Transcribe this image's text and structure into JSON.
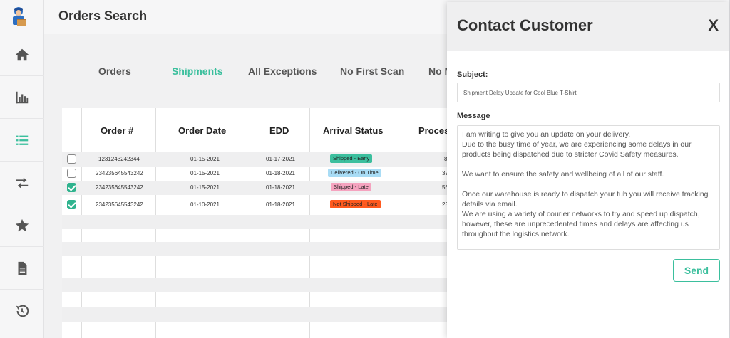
{
  "app": {
    "page_title": "Orders Search"
  },
  "sidebar": {
    "items": [
      {
        "name": "home",
        "icon": "home-icon"
      },
      {
        "name": "analytics",
        "icon": "bar-chart-icon"
      },
      {
        "name": "orders-list",
        "icon": "list-icon",
        "active": true
      },
      {
        "name": "transfers",
        "icon": "arrows-icon"
      },
      {
        "name": "favorites",
        "icon": "star-icon"
      },
      {
        "name": "documents",
        "icon": "document-icon"
      },
      {
        "name": "history",
        "icon": "history-icon"
      }
    ],
    "accent": "#3bbf9d"
  },
  "tabs": [
    {
      "label": "Orders",
      "active": false
    },
    {
      "label": "Shipments",
      "active": true
    },
    {
      "label": "All Exceptions",
      "active": false
    },
    {
      "label": "No First Scan",
      "active": false
    },
    {
      "label": "No M",
      "active": false
    }
  ],
  "table": {
    "headers": [
      "Order #",
      "Order Date",
      "EDD",
      "Arrival Status",
      "Proces"
    ],
    "rows": [
      {
        "checked": false,
        "order": "1231243242344",
        "order_date": "01-15-2021",
        "edd": "01-17-2021",
        "status": "Shipped - Early",
        "status_color": "#3cbf9e",
        "process": "8"
      },
      {
        "checked": false,
        "order": "234235645543242",
        "order_date": "01-15-2021",
        "edd": "01-18-2021",
        "status": "Delivered - On Time",
        "status_color": "#a9dcf5",
        "process": "37"
      },
      {
        "checked": true,
        "order": "234235645543242",
        "order_date": "01-15-2021",
        "edd": "01-18-2021",
        "status": "Shipped - Late",
        "status_color": "#f5a3bf",
        "process": "56"
      },
      {
        "checked": true,
        "order": "234235645543242",
        "order_date": "01-10-2021",
        "edd": "01-18-2021",
        "status": "Not Shipped - Late",
        "status_color": "#ff5a1f",
        "process": "25"
      }
    ]
  },
  "modal": {
    "title": "Contact Customer",
    "close_label": "X",
    "subject_label": "Subject:",
    "subject_value": "Shipment Delay Update for Cool Blue T-Shirt",
    "message_label": "Message",
    "message_paragraphs": [
      "I am writing to give you an update on your delivery.",
      "Due to the busy time of year, we are experiencing some delays in our products being dispatched due to stricter Covid Safety measures.",
      "",
      "We want to ensure the safety and wellbeing of all of our staff.",
      "",
      "Once our warehouse is ready to dispatch your tub you will receive tracking details via email.",
      "We are using a variety of courier networks to try and speed up dispatch, however, these are unprecedented times and delays are affecting us throughout the logistics network."
    ],
    "send_label": "Send"
  }
}
